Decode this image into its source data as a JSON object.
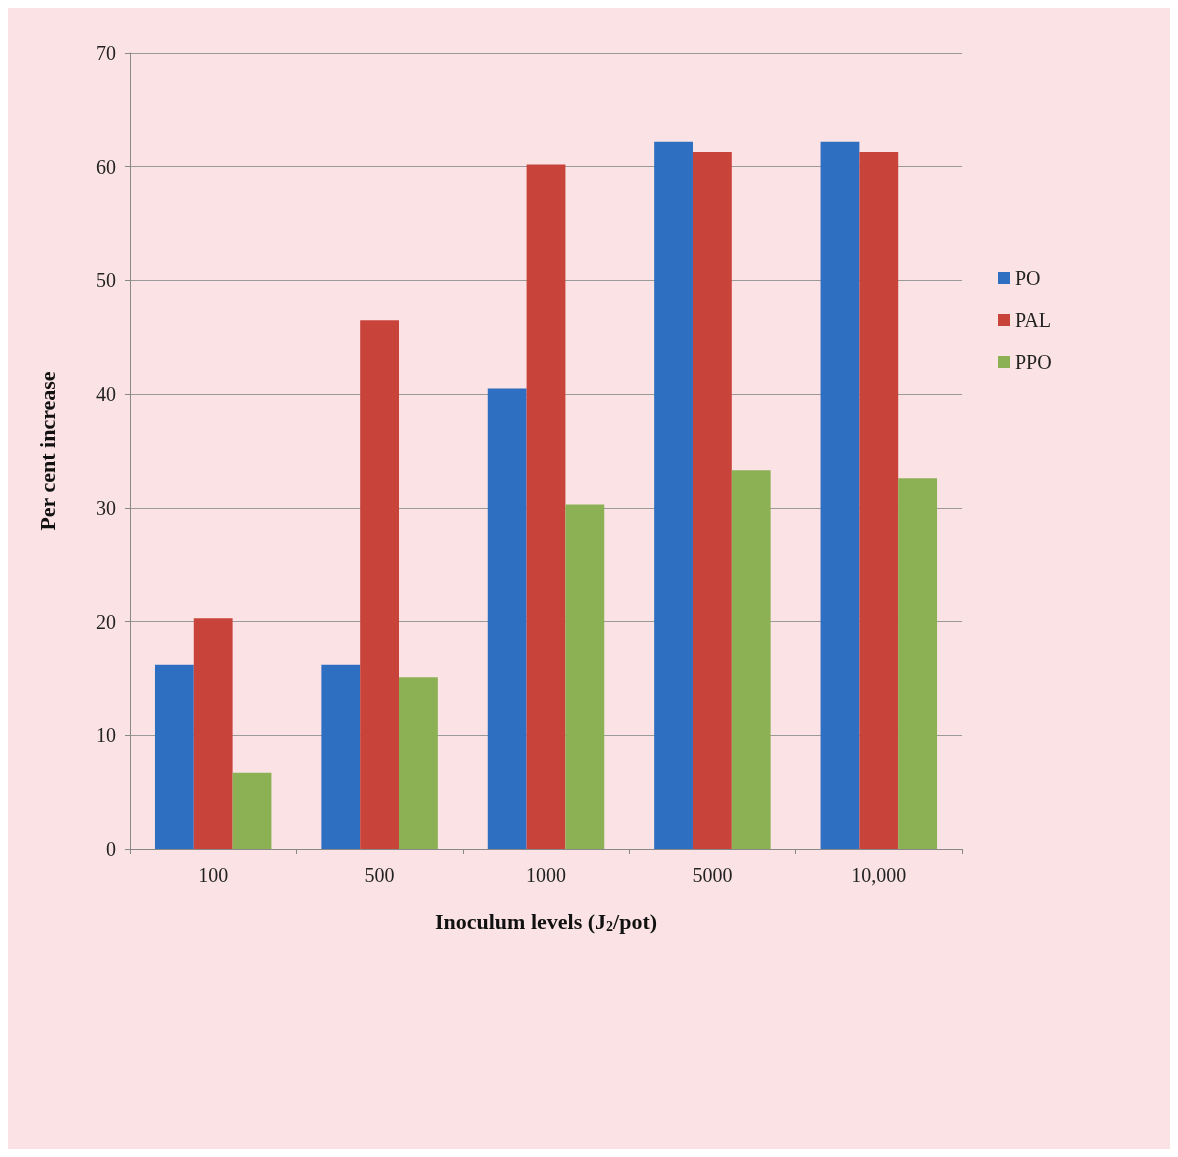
{
  "chart_data": {
    "type": "bar",
    "xlabel": "Inoculum levels (J$_{2}$/pot)",
    "ylabel": "Per cent increase",
    "categories": [
      "100",
      "500",
      "1000",
      "5000",
      "10,000"
    ],
    "series": [
      {
        "name": "PO",
        "color": "#2f6fc2",
        "values": [
          16.2,
          16.2,
          40.5,
          62.2,
          62.2
        ]
      },
      {
        "name": "PAL",
        "color": "#c8443b",
        "values": [
          20.3,
          46.5,
          60.2,
          61.3,
          61.3
        ]
      },
      {
        "name": "PPO",
        "color": "#8cb155",
        "values": [
          6.7,
          15.1,
          30.3,
          33.3,
          32.6
        ]
      }
    ],
    "ylim": [
      0,
      70
    ],
    "yticks": [
      0,
      10,
      20,
      30,
      40,
      50,
      60,
      70
    ],
    "grid": "y",
    "legend": "right"
  }
}
